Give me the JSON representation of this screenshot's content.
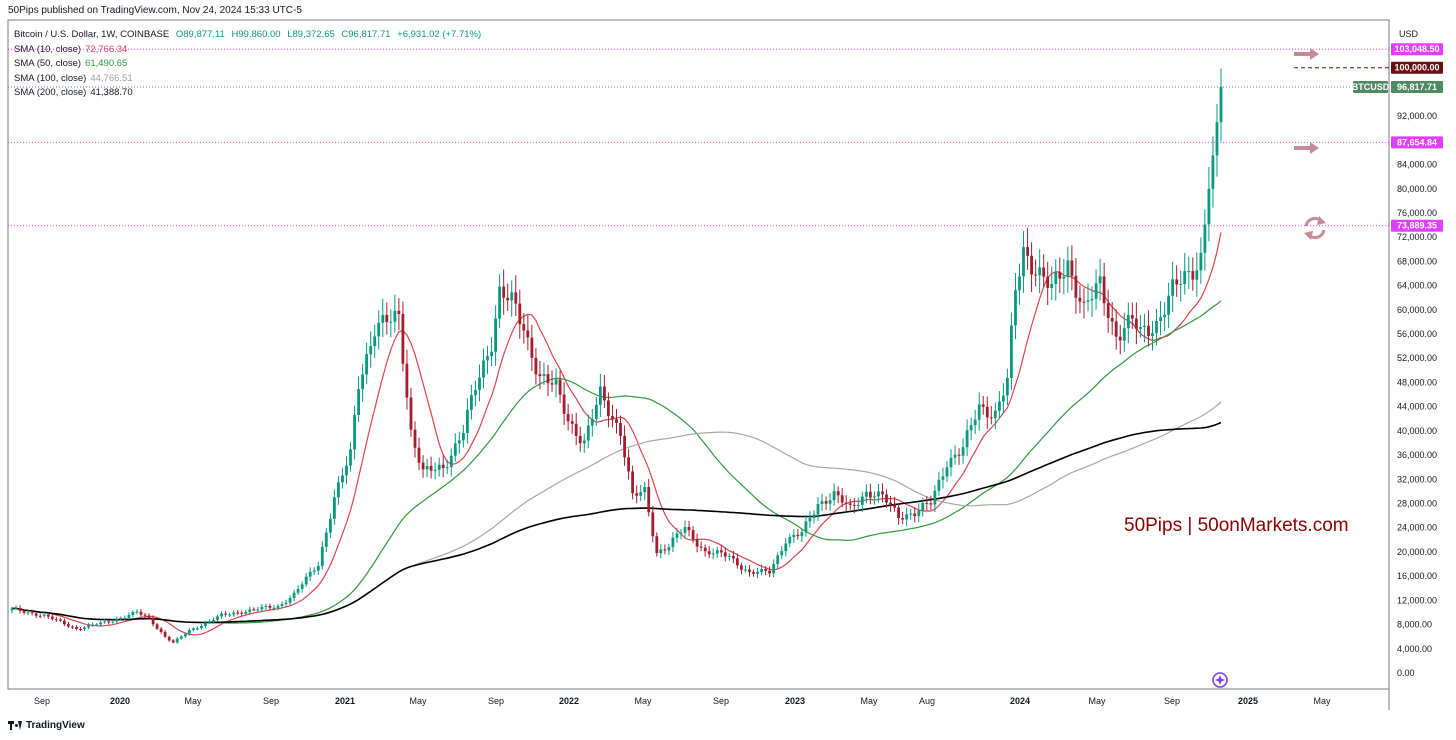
{
  "header": {
    "publisher": "50Pips published on TradingView.com, Nov 24, 2024 15:33 UTC-5"
  },
  "legend": {
    "symbol": "Bitcoin / U.S. Dollar, 1W, COINBASE",
    "open": "O89,877.11",
    "high": "H99,860.00",
    "low": "L89,372.65",
    "close": "C96,817.71",
    "change": "+6,931.02 (+7.71%)",
    "sma": [
      {
        "label": "SMA (10, close)",
        "value": "72,766.34",
        "color": "#e0414f"
      },
      {
        "label": "SMA (50, close)",
        "value": "61,490.65",
        "color": "#2e9a3a"
      },
      {
        "label": "SMA (100, close)",
        "value": "44,766.51",
        "color": "#9e9e9e"
      },
      {
        "label": "SMA (200, close)",
        "value": "41,388.70",
        "color": "#000000"
      }
    ]
  },
  "watermark": "50Pips | 50onMarkets.com",
  "footer": {
    "brand": "TradingView"
  },
  "colors": {
    "up": "#089981",
    "down": "#a51d2d",
    "level": "#e040fb",
    "ma10": "#e0414f",
    "ma50": "#2e9a3a",
    "ma100": "#a6a6a6",
    "ma200": "#000000",
    "watermark": "#8b0000",
    "arrow": "#c48a95"
  },
  "chart_data": {
    "type": "candlestick",
    "symbol": "BTCUSD",
    "interval": "1W",
    "currency": "USD",
    "y_ticks": [
      0,
      4000,
      8000,
      12000,
      16000,
      20000,
      24000,
      28000,
      32000,
      36000,
      40000,
      44000,
      48000,
      52000,
      56000,
      60000,
      64000,
      68000,
      72000,
      76000,
      80000,
      84000,
      92000
    ],
    "x_ticks": [
      "Sep",
      "2020",
      "May",
      "Sep",
      "2021",
      "May",
      "Sep",
      "2022",
      "May",
      "Sep",
      "2023",
      "May",
      "Aug",
      "2024",
      "May",
      "Sep",
      "2025",
      "May"
    ],
    "ylim": [
      -2000,
      108000
    ],
    "horizontal_levels": [
      {
        "value": 103048.5,
        "label": "103,048.50",
        "style": "dotted",
        "color": "#e040fb",
        "label_bg": "#e040fb"
      },
      {
        "value": 87654.84,
        "label": "87,654.84",
        "style": "dotted",
        "color": "#e040fb",
        "label_bg": "#e040fb"
      },
      {
        "value": 73889.35,
        "label": "73,889.35",
        "style": "dotted",
        "color": "#e040fb",
        "label_bg": "#e040fb"
      },
      {
        "value": 100000.0,
        "label": "100,000.00",
        "style": "dashed",
        "color": "#6b0f0f",
        "label_bg": "#6b0f0f"
      }
    ],
    "last_price": {
      "symbol": "BTCUSD",
      "value": 96817.71,
      "label": "96,817.71",
      "color": "#4e8a63"
    },
    "anchors_week_close": [
      [
        0,
        10500
      ],
      [
        8,
        9500
      ],
      [
        16,
        7300
      ],
      [
        24,
        8500
      ],
      [
        31,
        10000
      ],
      [
        34,
        9000
      ],
      [
        38,
        6000
      ],
      [
        40,
        5000
      ],
      [
        44,
        7000
      ],
      [
        52,
        9500
      ],
      [
        60,
        10500
      ],
      [
        66,
        11000
      ],
      [
        70,
        13000
      ],
      [
        76,
        18000
      ],
      [
        80,
        29000
      ],
      [
        84,
        36000
      ],
      [
        86,
        48000
      ],
      [
        90,
        57000
      ],
      [
        94,
        58000
      ],
      [
        96,
        59000
      ],
      [
        99,
        40000
      ],
      [
        102,
        33000
      ],
      [
        107,
        34000
      ],
      [
        112,
        40000
      ],
      [
        115,
        47000
      ],
      [
        119,
        55000
      ],
      [
        121,
        63000
      ],
      [
        124,
        61000
      ],
      [
        127,
        57000
      ],
      [
        131,
        49000
      ],
      [
        135,
        47000
      ],
      [
        138,
        42000
      ],
      [
        142,
        38000
      ],
      [
        146,
        46000
      ],
      [
        151,
        40000
      ],
      [
        154,
        29000
      ],
      [
        157,
        30000
      ],
      [
        160,
        20000
      ],
      [
        163,
        21000
      ],
      [
        167,
        24000
      ],
      [
        172,
        20000
      ],
      [
        178,
        19300
      ],
      [
        183,
        16500
      ],
      [
        188,
        16700
      ],
      [
        192,
        22000
      ],
      [
        196,
        23000
      ],
      [
        200,
        28000
      ],
      [
        204,
        29500
      ],
      [
        208,
        27000
      ],
      [
        212,
        30000
      ],
      [
        216,
        29000
      ],
      [
        220,
        26000
      ],
      [
        224,
        26500
      ],
      [
        228,
        28000
      ],
      [
        232,
        35000
      ],
      [
        236,
        37000
      ],
      [
        240,
        44000
      ],
      [
        244,
        43000
      ],
      [
        247,
        48000
      ],
      [
        249,
        63000
      ],
      [
        251,
        70000
      ],
      [
        254,
        67000
      ],
      [
        258,
        63000
      ],
      [
        262,
        68000
      ],
      [
        266,
        60000
      ],
      [
        270,
        64000
      ],
      [
        274,
        56000
      ],
      [
        278,
        58000
      ],
      [
        280,
        56000
      ],
      [
        284,
        58000
      ],
      [
        288,
        63000
      ],
      [
        292,
        66000
      ],
      [
        295,
        69000
      ],
      [
        297,
        80000
      ],
      [
        299,
        91000
      ],
      [
        300,
        96817.71
      ]
    ],
    "sma_final": {
      "sma10": 72766.34,
      "sma50": 61490.65,
      "sma100": 44766.51,
      "sma200": 41388.7
    }
  }
}
